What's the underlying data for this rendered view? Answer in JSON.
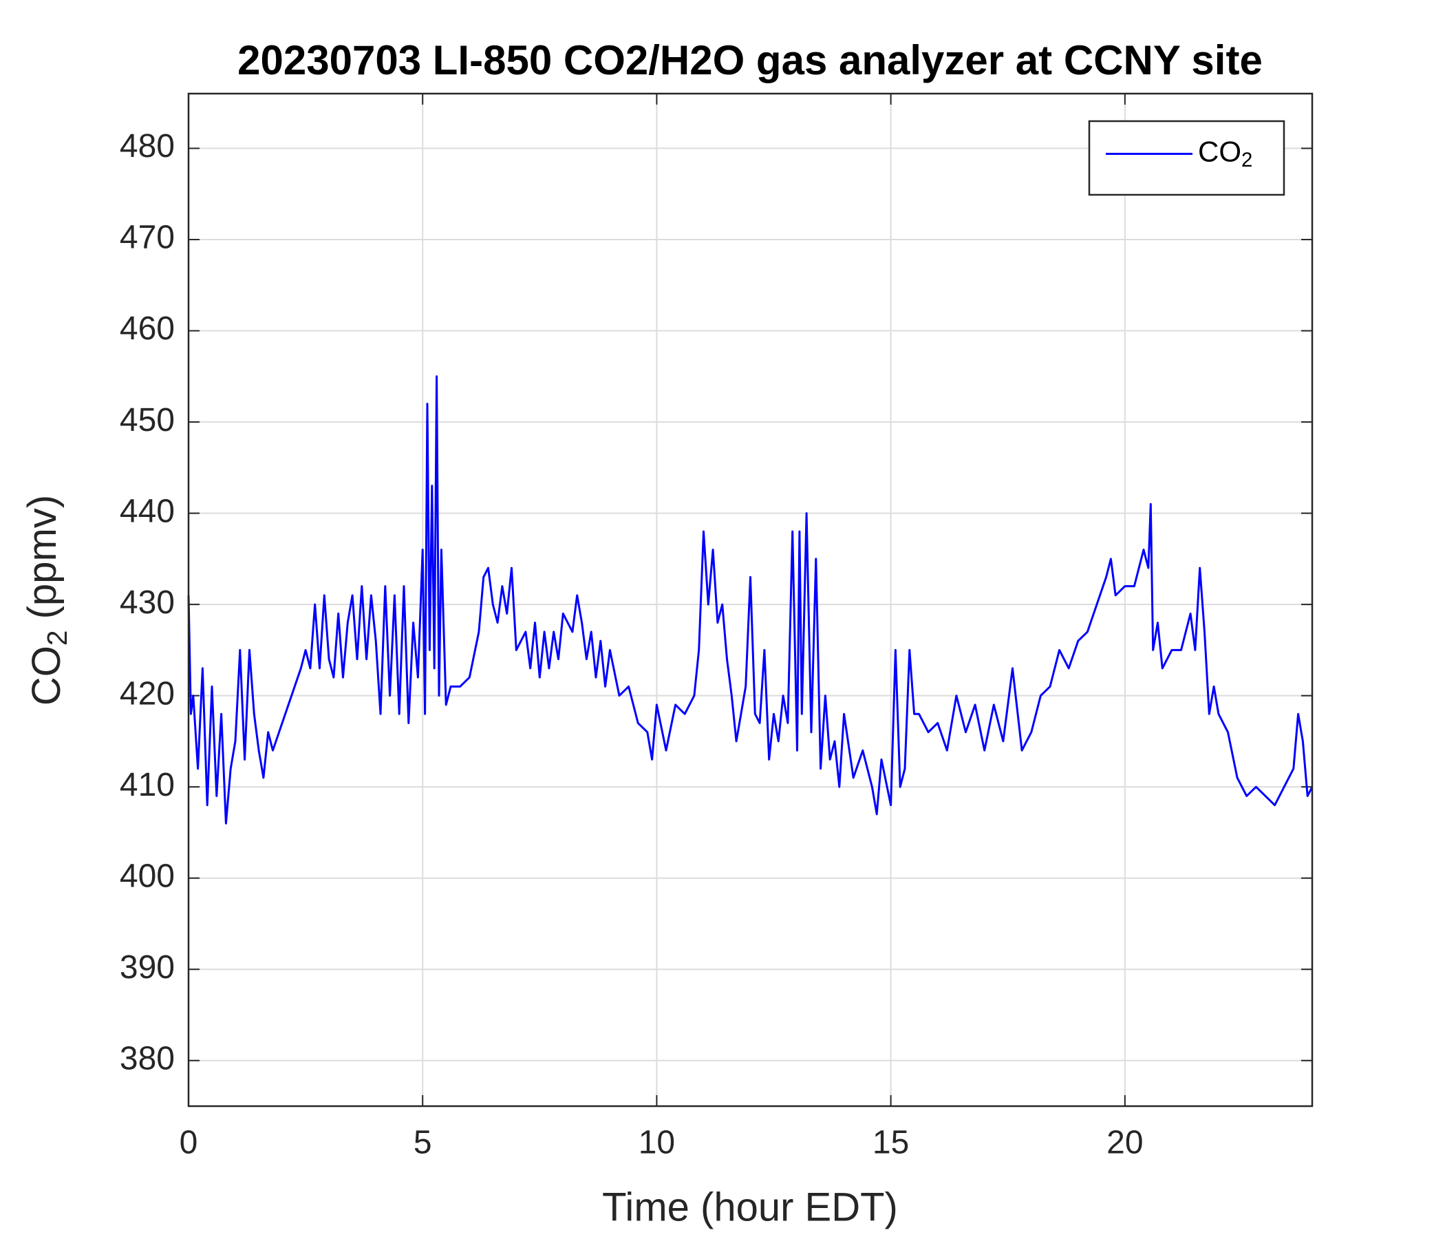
{
  "chart_data": {
    "type": "line",
    "title": "20230703 LI-850 CO2/H2O gas analyzer at CCNY site",
    "x_label": "Time (hour EDT)",
    "y_label": "CO2 (ppmv)",
    "xlim": [
      0,
      24
    ],
    "xticks": [
      0,
      5,
      10,
      15,
      20
    ],
    "ylim": [
      375,
      486
    ],
    "yticks": [
      380,
      390,
      400,
      410,
      420,
      430,
      440,
      450,
      460,
      470,
      480
    ],
    "grid": true,
    "legend": "upper right",
    "x": [
      0.0,
      0.05,
      0.1,
      0.2,
      0.3,
      0.4,
      0.5,
      0.6,
      0.7,
      0.8,
      0.9,
      1.0,
      1.1,
      1.2,
      1.3,
      1.4,
      1.5,
      1.6,
      1.7,
      1.8,
      2.0,
      2.2,
      2.4,
      2.5,
      2.6,
      2.7,
      2.8,
      2.9,
      3.0,
      3.1,
      3.2,
      3.3,
      3.4,
      3.5,
      3.6,
      3.7,
      3.8,
      3.9,
      4.0,
      4.1,
      4.2,
      4.3,
      4.4,
      4.5,
      4.6,
      4.7,
      4.8,
      4.9,
      5.0,
      5.05,
      5.1,
      5.15,
      5.2,
      5.25,
      5.3,
      5.35,
      5.4,
      5.5,
      5.6,
      5.8,
      6.0,
      6.2,
      6.3,
      6.4,
      6.5,
      6.6,
      6.7,
      6.8,
      6.9,
      7.0,
      7.2,
      7.3,
      7.4,
      7.5,
      7.6,
      7.7,
      7.8,
      7.9,
      8.0,
      8.2,
      8.3,
      8.4,
      8.5,
      8.6,
      8.7,
      8.8,
      8.9,
      9.0,
      9.2,
      9.4,
      9.6,
      9.8,
      9.9,
      10.0,
      10.2,
      10.4,
      10.6,
      10.8,
      10.9,
      11.0,
      11.1,
      11.2,
      11.3,
      11.4,
      11.5,
      11.6,
      11.7,
      11.8,
      11.9,
      12.0,
      12.1,
      12.2,
      12.3,
      12.4,
      12.5,
      12.6,
      12.7,
      12.8,
      12.9,
      13.0,
      13.05,
      13.1,
      13.2,
      13.3,
      13.4,
      13.5,
      13.6,
      13.7,
      13.8,
      13.9,
      14.0,
      14.2,
      14.4,
      14.6,
      14.7,
      14.8,
      15.0,
      15.1,
      15.2,
      15.3,
      15.4,
      15.5,
      15.6,
      15.8,
      16.0,
      16.2,
      16.4,
      16.6,
      16.8,
      17.0,
      17.2,
      17.4,
      17.6,
      17.8,
      18.0,
      18.2,
      18.4,
      18.6,
      18.8,
      19.0,
      19.2,
      19.4,
      19.6,
      19.7,
      19.8,
      20.0,
      20.2,
      20.4,
      20.5,
      20.55,
      20.6,
      20.7,
      20.8,
      21.0,
      21.2,
      21.4,
      21.5,
      21.6,
      21.7,
      21.8,
      21.9,
      22.0,
      22.2,
      22.4,
      22.6,
      22.8,
      23.0,
      23.2,
      23.4,
      23.6,
      23.7,
      23.8,
      23.9,
      24.0
    ],
    "series": [
      {
        "name": "CO2",
        "color": "#0000ff",
        "values": [
          431,
          418,
          420,
          412,
          423,
          408,
          421,
          409,
          418,
          406,
          412,
          415,
          425,
          413,
          425,
          418,
          414,
          411,
          416,
          414,
          417,
          420,
          423,
          425,
          423,
          430,
          423,
          431,
          424,
          422,
          429,
          422,
          428,
          431,
          424,
          432,
          424,
          431,
          426,
          418,
          432,
          420,
          431,
          418,
          432,
          417,
          428,
          422,
          436,
          418,
          452,
          425,
          443,
          423,
          455,
          420,
          436,
          419,
          421,
          421,
          422,
          427,
          433,
          434,
          430,
          428,
          432,
          429,
          434,
          425,
          427,
          423,
          428,
          422,
          427,
          423,
          427,
          424,
          429,
          427,
          431,
          428,
          424,
          427,
          422,
          426,
          421,
          425,
          420,
          421,
          417,
          416,
          413,
          419,
          414,
          419,
          418,
          420,
          425,
          438,
          430,
          436,
          428,
          430,
          424,
          420,
          415,
          418,
          421,
          433,
          418,
          417,
          425,
          413,
          418,
          415,
          420,
          417,
          438,
          414,
          438,
          418,
          440,
          416,
          435,
          412,
          420,
          413,
          415,
          410,
          418,
          411,
          414,
          410,
          407,
          413,
          408,
          425,
          410,
          412,
          425,
          418,
          418,
          416,
          417,
          414,
          420,
          416,
          419,
          414,
          419,
          415,
          423,
          414,
          416,
          420,
          421,
          425,
          423,
          426,
          427,
          430,
          433,
          435,
          431,
          432,
          432,
          436,
          434,
          441,
          425,
          428,
          423,
          425,
          425,
          429,
          425,
          434,
          427,
          418,
          421,
          418,
          416,
          411,
          409,
          410,
          409,
          408,
          410,
          412,
          418,
          415,
          409,
          410
        ]
      }
    ]
  }
}
